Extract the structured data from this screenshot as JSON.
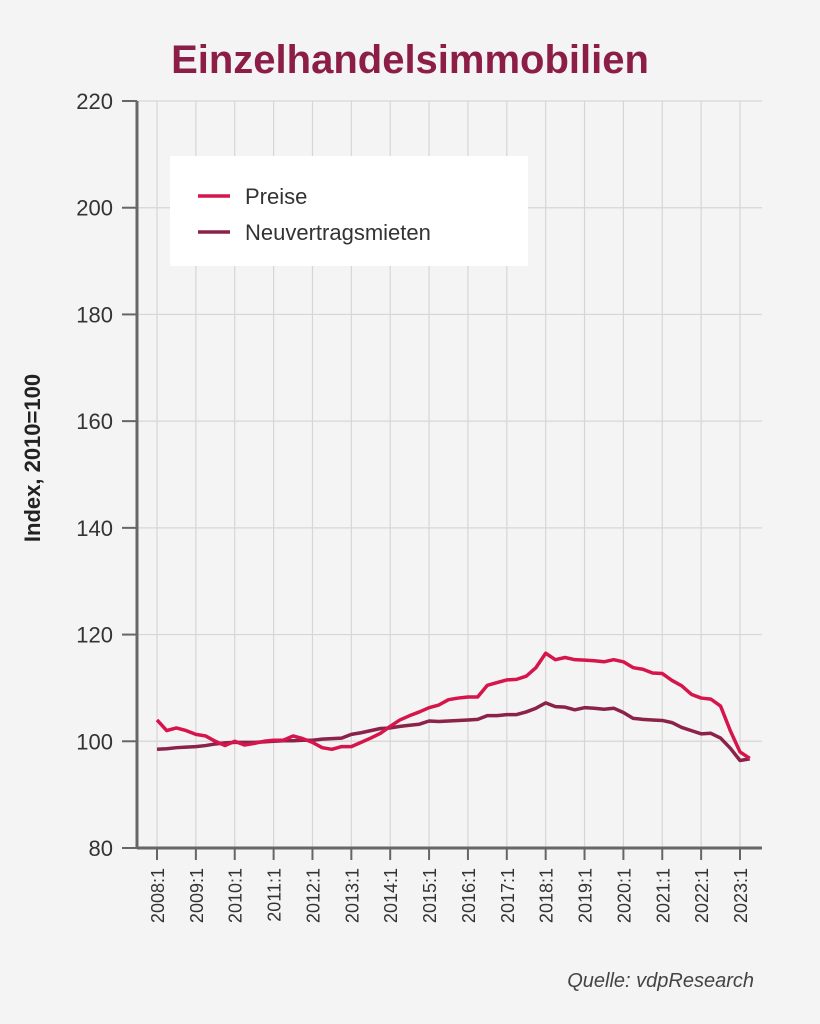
{
  "chart_data": {
    "type": "line",
    "title": "Einzelhandelsimmobilien",
    "xlabel": "",
    "ylabel": "Index, 2010=100",
    "ylim": [
      80,
      220
    ],
    "yticks": [
      80,
      100,
      120,
      140,
      160,
      180,
      200,
      220
    ],
    "xtick_labels": [
      "2008:1",
      "2009:1",
      "2010:1",
      "2011:1",
      "2012:1",
      "2013:1",
      "2014:1",
      "2015:1",
      "2016:1",
      "2017:1",
      "2018:1",
      "2019:1",
      "2020:1",
      "2021:1",
      "2022:1",
      "2023:1"
    ],
    "x_start": "2008:1",
    "x_freq": "quarterly",
    "legend_position": "top-left",
    "grid": true,
    "series": [
      {
        "name": "Preise",
        "color": "#d5154b",
        "values": [
          104,
          102,
          102.5,
          102,
          101.3,
          101,
          100,
          99.2,
          100,
          99.3,
          99.6,
          100,
          100.2,
          100.2,
          101,
          100.5,
          99.8,
          98.8,
          98.5,
          99,
          99,
          99.8,
          100.6,
          101.5,
          102.8,
          104,
          104.8,
          105.5,
          106.3,
          106.8,
          107.8,
          108.1,
          108.3,
          108.3,
          110.5,
          111,
          111.5,
          111.6,
          112.2,
          113.8,
          116.5,
          115.3,
          115.7,
          115.3,
          115.2,
          115.1,
          114.9,
          115.3,
          114.9,
          113.8,
          113.5,
          112.8,
          112.7,
          111.4,
          110.4,
          108.8,
          108.1,
          107.9,
          106.6,
          102,
          98,
          96.8
        ]
      },
      {
        "name": "Neuvertragsmieten",
        "color": "#8b2249",
        "values": [
          98.5,
          98.6,
          98.8,
          98.9,
          99,
          99.2,
          99.5,
          99.7,
          99.8,
          99.8,
          99.8,
          99.9,
          100,
          100.1,
          100.1,
          100.2,
          100.2,
          100.4,
          100.5,
          100.6,
          101.3,
          101.6,
          102,
          102.4,
          102.5,
          102.8,
          103,
          103.2,
          103.8,
          103.7,
          103.8,
          103.9,
          104,
          104.1,
          104.8,
          104.8,
          105,
          105,
          105.5,
          106.2,
          107.2,
          106.5,
          106.4,
          105.9,
          106.3,
          106.2,
          106,
          106.2,
          105.4,
          104.3,
          104.1,
          104,
          103.9,
          103.5,
          102.6,
          102,
          101.4,
          101.5,
          100.6,
          98.7,
          96.4,
          96.7
        ]
      }
    ]
  },
  "source": "Quelle: vdpResearch"
}
